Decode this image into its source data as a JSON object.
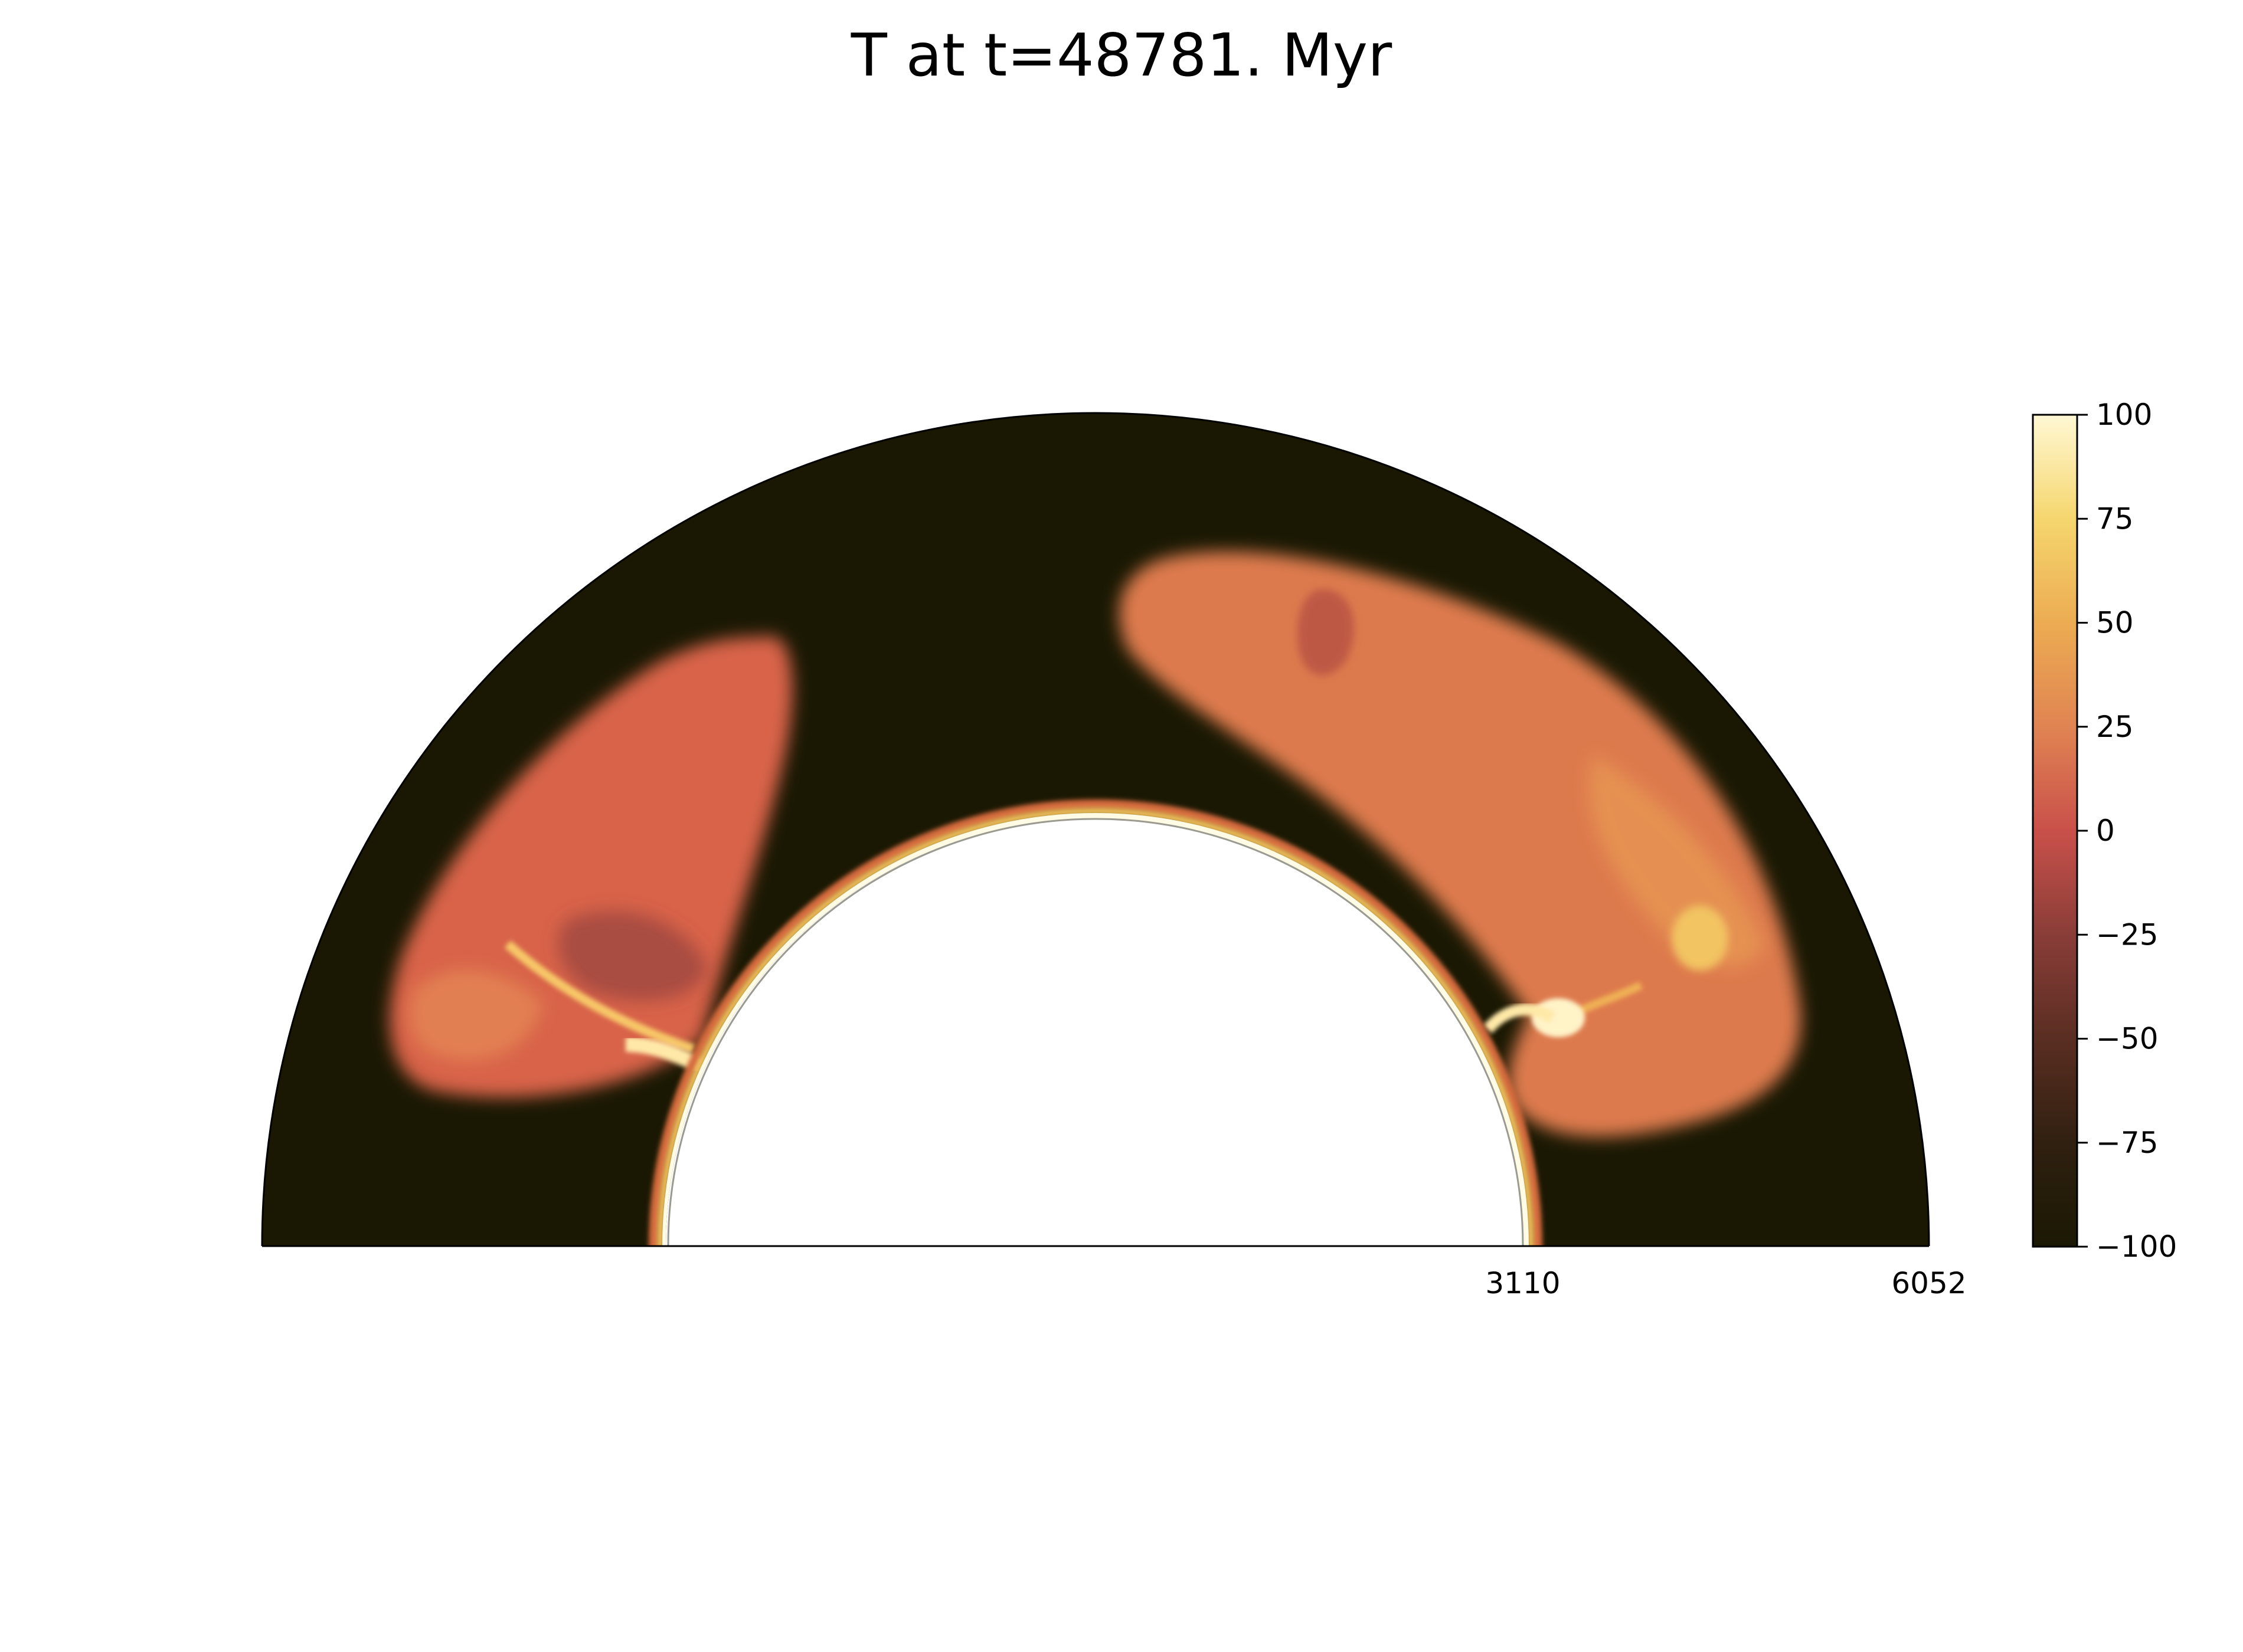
{
  "chart_data": {
    "type": "heatmap",
    "title": "T at t=48781. Myr",
    "geometry": "polar half-annulus",
    "radial_axis": {
      "inner_radius": 3110,
      "outer_radius": 6052,
      "tick_labels": [
        "3110",
        "6052"
      ]
    },
    "colorbar": {
      "min": -100,
      "max": 100,
      "ticks": [
        100,
        75,
        50,
        25,
        0,
        -25,
        -50,
        -75,
        -100
      ],
      "tick_labels": [
        "100",
        "75",
        "50",
        "25",
        "0",
        "−25",
        "−50",
        "−75",
        "−100"
      ],
      "colormap_stops": [
        {
          "value": -100,
          "color": "#1a1803"
        },
        {
          "value": -75,
          "color": "#302010"
        },
        {
          "value": -50,
          "color": "#5a2e22"
        },
        {
          "value": -25,
          "color": "#8a3d38"
        },
        {
          "value": 0,
          "color": "#c9504a"
        },
        {
          "value": 25,
          "color": "#e08452"
        },
        {
          "value": 50,
          "color": "#ecac52"
        },
        {
          "value": 75,
          "color": "#f5d66e"
        },
        {
          "value": 100,
          "color": "#fff8d4"
        }
      ]
    },
    "background_value": -100,
    "features": [
      {
        "name": "left-plume",
        "polar_angle_deg": 140,
        "value": 10
      },
      {
        "name": "right-plume",
        "polar_angle_deg": 45,
        "value": 20
      },
      {
        "name": "hot-spot",
        "polar_angle_deg": 30,
        "value": 90
      },
      {
        "name": "inner-boundary-layer",
        "value": 100
      }
    ]
  }
}
